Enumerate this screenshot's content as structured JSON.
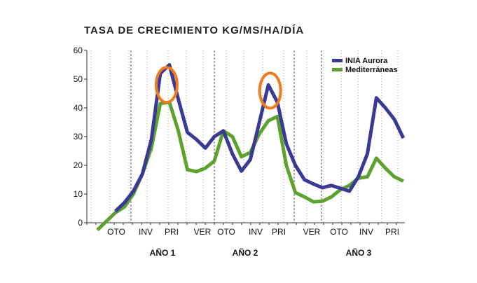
{
  "chart_data": {
    "type": "line",
    "title": "TASA DE CRECIMIENTO KG/MS/HA/DÍA",
    "xlabel": "",
    "ylabel": "",
    "ylim": [
      0,
      60
    ],
    "yticks": [
      0,
      10,
      20,
      30,
      40,
      50,
      60
    ],
    "grid": "dotted vertical, dashed season dividers",
    "legend_position": "top-right",
    "seasons": [
      "OTO",
      "INV",
      "PRI",
      "VER",
      "OTO",
      "INV",
      "PRI",
      "VER",
      "OTO",
      "INV",
      "PRI"
    ],
    "years": [
      "AÑO 1",
      "AÑO 2",
      "AÑO 3"
    ],
    "x_index": [
      0,
      1,
      2,
      3,
      4,
      5,
      6,
      7,
      8,
      9,
      10,
      11,
      12,
      13,
      14,
      15,
      16,
      17,
      18,
      19,
      20,
      21,
      22,
      23,
      24,
      25,
      26,
      27,
      28,
      29,
      30,
      31,
      32,
      33,
      34,
      35,
      36
    ],
    "series": [
      {
        "name": "INIA Aurora",
        "color": "#3a3a94",
        "values": [
          null,
          null,
          4,
          7,
          11,
          17,
          29,
          52,
          55,
          43,
          31.5,
          29,
          26,
          30,
          32,
          24,
          18,
          22,
          35,
          48,
          42,
          27.5,
          20,
          15,
          13.5,
          12.2,
          13,
          12,
          11,
          16,
          24,
          43.5,
          40,
          36,
          29.5,
          null,
          null
        ]
      },
      {
        "name": "Mediterráneas",
        "color": "#5da22f",
        "values": [
          -2.5,
          0.5,
          3.5,
          5.5,
          10,
          17,
          26,
          41.5,
          42,
          32,
          18.5,
          17.8,
          19,
          21.5,
          32,
          30,
          23,
          24.5,
          31,
          35.5,
          37,
          20,
          10.5,
          9,
          7.3,
          7.5,
          9,
          11.5,
          13,
          15.5,
          16,
          22.5,
          19,
          16,
          14.5,
          null,
          null
        ]
      }
    ],
    "annotations": [
      {
        "type": "circle",
        "color": "#f07a1e",
        "at_x": 7.7,
        "at_y": 48
      },
      {
        "type": "circle",
        "color": "#f07a1e",
        "at_x": 19.2,
        "at_y": 46
      }
    ]
  }
}
